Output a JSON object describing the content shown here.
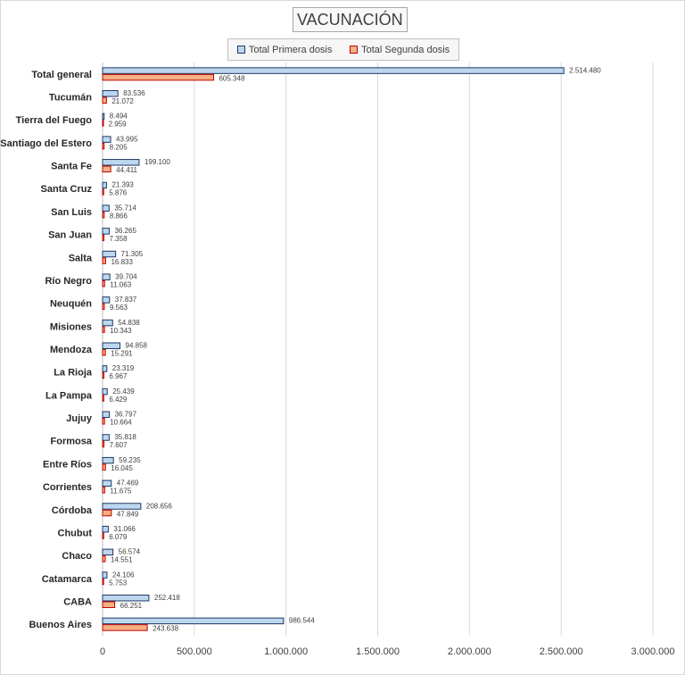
{
  "chart_data": {
    "type": "bar",
    "orientation": "horizontal",
    "title": "VACUNACIÓN",
    "categories": [
      "Total general",
      "Tucumán",
      "Tierra del Fuego",
      "Santiago del Estero",
      "Santa Fe",
      "Santa Cruz",
      "San Luis",
      "San Juan",
      "Salta",
      "Río Negro",
      "Neuquén",
      "Misiones",
      "Mendoza",
      "La Rioja",
      "La Pampa",
      "Jujuy",
      "Formosa",
      "Entre Ríos",
      "Corrientes",
      "Córdoba",
      "Chubut",
      "Chaco",
      "Catamarca",
      "CABA",
      "Buenos Aires"
    ],
    "series": [
      {
        "name": "Total Primera dosis",
        "color": "#bdd7ee",
        "border": "#1f3864",
        "values": [
          2514480,
          83536,
          8494,
          43995,
          199100,
          21393,
          35714,
          36265,
          71305,
          39704,
          37837,
          54838,
          94858,
          23319,
          25439,
          36797,
          35818,
          59235,
          47469,
          208656,
          31066,
          56574,
          24106,
          252418,
          986544
        ],
        "labels": [
          "2.514.480",
          "83.536",
          "8.494",
          "43.995",
          "199.100",
          "21.393",
          "35.714",
          "36.265",
          "71.305",
          "39.704",
          "37.837",
          "54.838",
          "94.858",
          "23.319",
          "25.439",
          "36.797",
          "35.818",
          "59.235",
          "47.469",
          "208.656",
          "31.066",
          "56.574",
          "24.106",
          "252.418",
          "986.544"
        ]
      },
      {
        "name": "Total Segunda dosis",
        "color": "#f4b183",
        "border": "#c00000",
        "values": [
          605348,
          21072,
          2959,
          8205,
          44411,
          5876,
          8866,
          7358,
          16833,
          11063,
          9563,
          10343,
          15291,
          6967,
          6429,
          10664,
          7607,
          16045,
          11675,
          47849,
          6079,
          14551,
          5753,
          66251,
          243638
        ],
        "labels": [
          "605.348",
          "21.072",
          "2.959",
          "8.205",
          "44.411",
          "5.876",
          "8.866",
          "7.358",
          "16.833",
          "11.063",
          "9.563",
          "10.343",
          "15.291",
          "6.967",
          "6.429",
          "10.664",
          "7.607",
          "16.045",
          "11.675",
          "47.849",
          "6.079",
          "14.551",
          "5.753",
          "66.251",
          "243.638"
        ]
      }
    ],
    "xlim": [
      0,
      3000000
    ],
    "xticks": [
      0,
      500000,
      1000000,
      1500000,
      2000000,
      2500000,
      3000000
    ],
    "xtick_labels": [
      "0",
      "500.000",
      "1.000.000",
      "1.500.000",
      "2.000.000",
      "2.500.000",
      "3.000.000"
    ],
    "grid": true,
    "legend": "top"
  }
}
